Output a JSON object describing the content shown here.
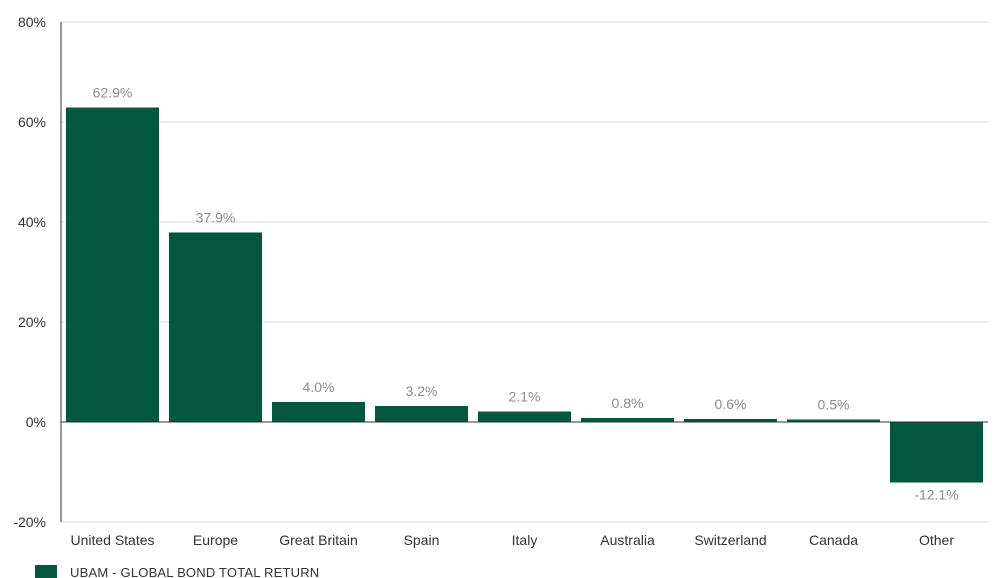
{
  "chart_data": {
    "type": "bar",
    "categories": [
      "United States",
      "Europe",
      "Great Britain",
      "Spain",
      "Italy",
      "Australia",
      "Switzerland",
      "Canada",
      "Other"
    ],
    "series": [
      {
        "name": "UBAM - GLOBAL BOND TOTAL RETURN",
        "values": [
          62.9,
          37.9,
          4.0,
          3.2,
          2.1,
          0.8,
          0.6,
          0.5,
          -12.1
        ],
        "labels": [
          "62.9%",
          "37.9%",
          "4.0%",
          "3.2%",
          "2.1%",
          "0.8%",
          "0.6%",
          "0.5%",
          "-12.1%"
        ],
        "color": "#02573f"
      }
    ],
    "yticks": [
      80,
      60,
      40,
      20,
      0,
      -20
    ],
    "ytick_labels": [
      "80%",
      "60%",
      "40%",
      "20%",
      "0%",
      "-20%"
    ],
    "ylim": [
      -20,
      80
    ],
    "grid": true,
    "legend": "bottom-left",
    "gridline_color": "#d9d9d9",
    "axis_color": "#333333"
  }
}
